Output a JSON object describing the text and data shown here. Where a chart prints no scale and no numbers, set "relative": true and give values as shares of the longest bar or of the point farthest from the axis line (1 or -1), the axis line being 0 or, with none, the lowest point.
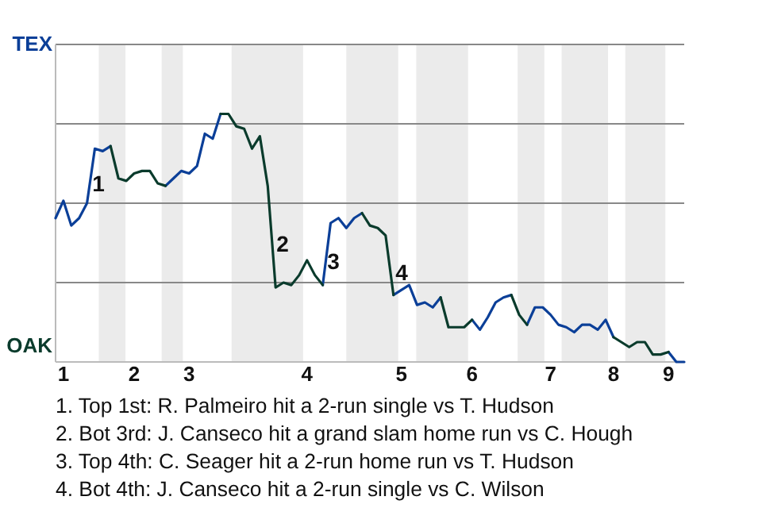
{
  "chart_data": {
    "type": "line",
    "relative": true,
    "categories": [
      null,
      "1",
      null,
      null,
      null,
      null,
      null,
      null,
      null,
      null,
      "2",
      null,
      null,
      null,
      null,
      null,
      null,
      "3",
      null,
      null,
      null,
      null,
      null,
      null,
      null,
      null,
      null,
      null,
      null,
      null,
      null,
      null,
      "4",
      null,
      null,
      null,
      null,
      null,
      null,
      null,
      null,
      null,
      null,
      null,
      "5",
      null,
      null,
      null,
      null,
      null,
      null,
      null,
      null,
      "6",
      null,
      null,
      null,
      null,
      null,
      null,
      null,
      null,
      null,
      "7",
      null,
      null,
      null,
      null,
      null,
      null,
      null,
      "8",
      null,
      null,
      null,
      null,
      null,
      null,
      "9",
      null,
      null
    ],
    "grid": "y",
    "legend": "left",
    "line_style": "solid",
    "marker": "none",
    "series": [
      {
        "name": "TEX",
        "color": "#0b3f98",
        "values": [
          0.58,
          0.65,
          0.55,
          0.58,
          0.64,
          0.86,
          0.85,
          0.87,
          null,
          null,
          null,
          null,
          null,
          null,
          0.71,
          0.74,
          0.77,
          0.76,
          0.79,
          0.92,
          0.9,
          1,
          null,
          null,
          null,
          null,
          null,
          null,
          null,
          null,
          null,
          null,
          null,
          null,
          0.31,
          0.56,
          0.58,
          0.54,
          0.58,
          0.6,
          null,
          null,
          null,
          0.27,
          0.29,
          0.31,
          0.23,
          0.24,
          0.22,
          0.26,
          null,
          null,
          null,
          0.17,
          0.13,
          0.18,
          0.24,
          0.26,
          0.27,
          null,
          0.15,
          0.22,
          0.22,
          0.19,
          0.15,
          0.14,
          0.12,
          0.15,
          0.15,
          0.13,
          0.17,
          0.1,
          null,
          null,
          null,
          null,
          null,
          null,
          0.04,
          0,
          0
        ]
      },
      {
        "name": "OAK",
        "color": "#0a3b2c",
        "values": [
          null,
          null,
          null,
          null,
          null,
          null,
          null,
          0.87,
          0.74,
          0.73,
          0.76,
          0.77,
          0.77,
          0.72,
          0.71,
          null,
          null,
          null,
          null,
          null,
          null,
          1,
          1,
          0.95,
          0.94,
          0.86,
          0.91,
          0.71,
          0.3,
          0.32,
          0.31,
          0.35,
          0.41,
          0.35,
          0.31,
          null,
          null,
          null,
          null,
          0.6,
          0.55,
          0.54,
          0.51,
          0.27,
          null,
          null,
          null,
          null,
          null,
          0.26,
          0.14,
          0.14,
          0.14,
          0.17,
          null,
          null,
          null,
          null,
          0.27,
          0.19,
          0.15,
          null,
          null,
          null,
          null,
          null,
          null,
          null,
          null,
          null,
          null,
          0.1,
          0.08,
          0.06,
          0.08,
          0.08,
          0.03,
          0.03,
          0.04,
          null,
          null
        ]
      }
    ],
    "annotations": [
      "1",
      "2",
      "3",
      "4",
      "1. Top 1st: R. Palmeiro hit a 2-run single vs T. Hudson",
      "2. Bot 3rd: J. Canseco hit a grand slam home run vs C. Hough",
      "3. Top 4th: C. Seager hit a 2-run home run vs T. Hudson",
      "4. Bot 4th: J. Canseco hit a 2-run single vs C. Wilson"
    ]
  }
}
